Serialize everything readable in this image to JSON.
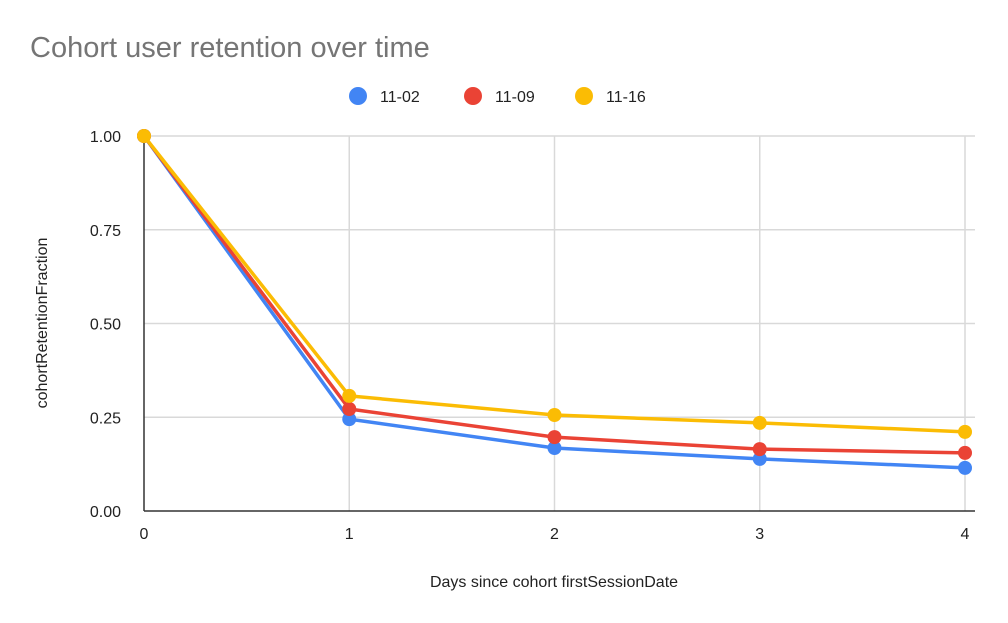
{
  "chart_data": {
    "type": "line",
    "title": "Cohort user retention over time",
    "xlabel": "Days since cohort firstSessionDate",
    "ylabel": "cohortRetentionFraction",
    "x": [
      0,
      1,
      2,
      3,
      4
    ],
    "x_tick_labels": [
      "0",
      "1",
      "2",
      "3",
      "4"
    ],
    "y_tick_labels": [
      "0.00",
      "0.25",
      "0.50",
      "0.75",
      "1.00"
    ],
    "y_ticks": [
      0,
      0.25,
      0.5,
      0.75,
      1.0
    ],
    "xlim": [
      0,
      4
    ],
    "ylim": [
      0,
      1
    ],
    "grid": true,
    "legend_position": "top",
    "series": [
      {
        "name": "11-02",
        "color": "#4285F4",
        "values": [
          1.0,
          0.245,
          0.168,
          0.139,
          0.115
        ]
      },
      {
        "name": "11-09",
        "color": "#EA4335",
        "values": [
          1.0,
          0.272,
          0.197,
          0.165,
          0.155
        ]
      },
      {
        "name": "11-16",
        "color": "#FBBC04",
        "values": [
          1.0,
          0.307,
          0.256,
          0.235,
          0.211
        ]
      }
    ]
  }
}
